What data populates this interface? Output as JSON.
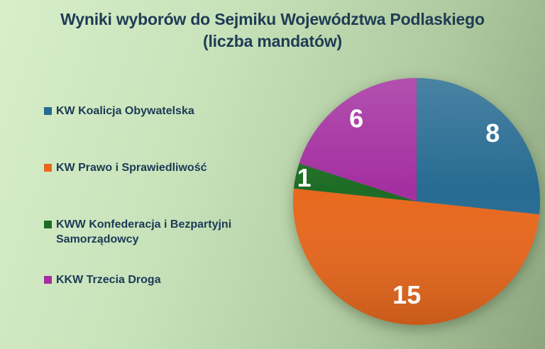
{
  "title": "Wyniki wyborów do Sejmiku Województwa Podlaskiego",
  "subtitle": "(liczba mandatów)",
  "colors": {
    "background_start": "#d8efca",
    "background_end": "#8da680",
    "title_text": "#1e3c55",
    "legend_text": "#1b3a55",
    "value_label_text": "#ffffff"
  },
  "chart_data": {
    "type": "pie",
    "title": "Wyniki wyborów do Sejmiku Województwa Podlaskiego (liczba mandatów)",
    "units": "mandaty",
    "total": 30,
    "start_angle_deg": 0,
    "direction": "clockwise",
    "legend_position": "left",
    "slices": [
      {
        "label": "KW Koalicja Obywatelska",
        "value": 8,
        "color": "#276b92",
        "label_r": 0.83
      },
      {
        "label": "KW Prawo i Sprawiedliwość",
        "value": 15,
        "color": "#e8681d",
        "label_r": 0.76
      },
      {
        "label": "KWW Konfederacja i Bezpartyjni Samorządowcy",
        "value": 1,
        "color": "#1d6c25",
        "label_r": 0.93
      },
      {
        "label": "KKW Trzecia Droga",
        "value": 6,
        "color": "#a42fa0",
        "label_r": 0.83
      }
    ]
  }
}
